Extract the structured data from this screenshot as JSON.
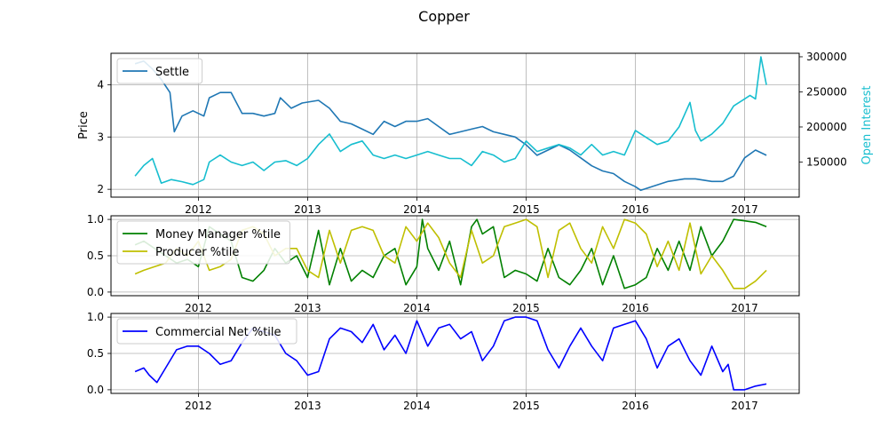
{
  "chart_data": {
    "type": "line",
    "title": "Copper",
    "colors": {
      "settle": "#1f77b4",
      "open_interest": "#17becf",
      "money_manager": "#008000",
      "producer": "#bfbf00",
      "commercial": "#0000ff",
      "grid": "#b0b0b0"
    },
    "x_ticks": [
      "2012",
      "2013",
      "2014",
      "2015",
      "2016",
      "2017"
    ],
    "panels": [
      {
        "id": "price",
        "ylabel": "Price",
        "ylabel_right": "Open Interest",
        "ylim": [
          1.85,
          4.6
        ],
        "ylim_right": [
          100000,
          305000
        ],
        "y_ticks": [
          "2",
          "3",
          "4"
        ],
        "y_ticks_right": [
          "150000",
          "200000",
          "250000",
          "300000"
        ],
        "legend": "top-left",
        "series": [
          {
            "name": "Settle",
            "axis": "left",
            "x": [
              2011.42,
              2011.5,
              2011.58,
              2011.66,
              2011.74,
              2011.78,
              2011.85,
              2011.95,
              2012.05,
              2012.1,
              2012.2,
              2012.3,
              2012.4,
              2012.5,
              2012.6,
              2012.7,
              2012.75,
              2012.85,
              2012.95,
              2013.1,
              2013.2,
              2013.3,
              2013.4,
              2013.5,
              2013.6,
              2013.7,
              2013.8,
              2013.9,
              2014.0,
              2014.1,
              2014.2,
              2014.3,
              2014.4,
              2014.5,
              2014.6,
              2014.7,
              2014.8,
              2014.9,
              2015.0,
              2015.1,
              2015.2,
              2015.3,
              2015.4,
              2015.5,
              2015.6,
              2015.7,
              2015.8,
              2015.9,
              2016.0,
              2016.05,
              2016.15,
              2016.3,
              2016.45,
              2016.55,
              2016.7,
              2016.8,
              2016.9,
              2017.0,
              2017.1,
              2017.2
            ],
            "y": [
              4.4,
              4.45,
              4.3,
              4.1,
              3.85,
              3.1,
              3.4,
              3.5,
              3.4,
              3.75,
              3.85,
              3.85,
              3.45,
              3.45,
              3.4,
              3.45,
              3.75,
              3.55,
              3.65,
              3.7,
              3.55,
              3.3,
              3.25,
              3.15,
              3.05,
              3.3,
              3.2,
              3.3,
              3.3,
              3.35,
              3.2,
              3.05,
              3.1,
              3.15,
              3.2,
              3.1,
              3.05,
              3.0,
              2.85,
              2.65,
              2.75,
              2.85,
              2.75,
              2.6,
              2.45,
              2.35,
              2.3,
              2.15,
              2.05,
              1.98,
              2.05,
              2.15,
              2.2,
              2.2,
              2.15,
              2.15,
              2.25,
              2.6,
              2.75,
              2.65
            ]
          },
          {
            "name": "Open Interest",
            "axis": "right",
            "x": [
              2011.42,
              2011.5,
              2011.58,
              2011.66,
              2011.75,
              2011.85,
              2011.95,
              2012.05,
              2012.1,
              2012.2,
              2012.3,
              2012.4,
              2012.5,
              2012.6,
              2012.7,
              2012.8,
              2012.9,
              2013.0,
              2013.1,
              2013.2,
              2013.3,
              2013.4,
              2013.5,
              2013.6,
              2013.7,
              2013.8,
              2013.9,
              2014.0,
              2014.1,
              2014.2,
              2014.3,
              2014.4,
              2014.5,
              2014.6,
              2014.7,
              2014.8,
              2014.9,
              2015.0,
              2015.1,
              2015.2,
              2015.3,
              2015.4,
              2015.5,
              2015.6,
              2015.7,
              2015.8,
              2015.9,
              2016.0,
              2016.1,
              2016.2,
              2016.3,
              2016.4,
              2016.5,
              2016.55,
              2016.6,
              2016.7,
              2016.8,
              2016.9,
              2017.0,
              2017.05,
              2017.1,
              2017.15,
              2017.2
            ],
            "y": [
              130000,
              145000,
              155000,
              120000,
              125000,
              122000,
              118000,
              125000,
              150000,
              160000,
              150000,
              145000,
              150000,
              138000,
              150000,
              152000,
              145000,
              155000,
              175000,
              190000,
              165000,
              175000,
              180000,
              160000,
              155000,
              160000,
              155000,
              160000,
              165000,
              160000,
              155000,
              155000,
              145000,
              165000,
              160000,
              150000,
              155000,
              180000,
              165000,
              170000,
              175000,
              170000,
              160000,
              175000,
              160000,
              165000,
              160000,
              195000,
              185000,
              175000,
              180000,
              200000,
              235000,
              195000,
              180000,
              190000,
              205000,
              230000,
              240000,
              245000,
              240000,
              300000,
              260000
            ]
          }
        ]
      },
      {
        "id": "percentile",
        "ylim": [
          -0.05,
          1.05
        ],
        "y_ticks": [
          "0.0",
          "0.5",
          "1.0"
        ],
        "legend": "top-left",
        "series": [
          {
            "name": "Money Manager %tile",
            "x": [
              2011.42,
              2011.5,
              2011.6,
              2011.7,
              2011.8,
              2011.9,
              2012.0,
              2012.1,
              2012.2,
              2012.3,
              2012.4,
              2012.5,
              2012.6,
              2012.7,
              2012.8,
              2012.9,
              2013.0,
              2013.1,
              2013.2,
              2013.3,
              2013.4,
              2013.5,
              2013.6,
              2013.7,
              2013.8,
              2013.9,
              2014.0,
              2014.05,
              2014.1,
              2014.2,
              2014.3,
              2014.4,
              2014.5,
              2014.55,
              2014.6,
              2014.7,
              2014.8,
              2014.9,
              2015.0,
              2015.1,
              2015.2,
              2015.3,
              2015.4,
              2015.5,
              2015.6,
              2015.7,
              2015.8,
              2015.9,
              2016.0,
              2016.1,
              2016.2,
              2016.3,
              2016.4,
              2016.5,
              2016.6,
              2016.7,
              2016.8,
              2016.9,
              2017.0,
              2017.1,
              2017.2
            ],
            "y": [
              0.65,
              0.7,
              0.6,
              0.5,
              0.4,
              0.45,
              0.35,
              0.9,
              0.8,
              0.7,
              0.2,
              0.15,
              0.3,
              0.6,
              0.4,
              0.5,
              0.2,
              0.85,
              0.1,
              0.6,
              0.15,
              0.3,
              0.2,
              0.5,
              0.6,
              0.1,
              0.35,
              1.0,
              0.6,
              0.3,
              0.7,
              0.1,
              0.9,
              1.0,
              0.8,
              0.9,
              0.2,
              0.3,
              0.25,
              0.15,
              0.6,
              0.2,
              0.1,
              0.3,
              0.6,
              0.1,
              0.5,
              0.05,
              0.1,
              0.2,
              0.6,
              0.3,
              0.7,
              0.3,
              0.9,
              0.5,
              0.7,
              1.0,
              0.98,
              0.96,
              0.9
            ]
          },
          {
            "name": "Producer %tile",
            "x": [
              2011.42,
              2011.5,
              2011.6,
              2011.7,
              2011.8,
              2011.9,
              2012.0,
              2012.1,
              2012.2,
              2012.3,
              2012.4,
              2012.5,
              2012.6,
              2012.7,
              2012.8,
              2012.9,
              2013.0,
              2013.1,
              2013.2,
              2013.3,
              2013.4,
              2013.5,
              2013.6,
              2013.7,
              2013.8,
              2013.9,
              2014.0,
              2014.1,
              2014.2,
              2014.3,
              2014.4,
              2014.5,
              2014.6,
              2014.7,
              2014.8,
              2014.9,
              2015.0,
              2015.1,
              2015.2,
              2015.3,
              2015.4,
              2015.5,
              2015.6,
              2015.7,
              2015.8,
              2015.9,
              2016.0,
              2016.1,
              2016.2,
              2016.3,
              2016.4,
              2016.5,
              2016.6,
              2016.7,
              2016.8,
              2016.9,
              2017.0,
              2017.1,
              2017.2
            ],
            "y": [
              0.25,
              0.3,
              0.35,
              0.4,
              0.6,
              0.5,
              0.7,
              0.3,
              0.35,
              0.45,
              0.85,
              0.9,
              0.8,
              0.5,
              0.6,
              0.6,
              0.3,
              0.2,
              0.85,
              0.4,
              0.85,
              0.9,
              0.85,
              0.5,
              0.4,
              0.9,
              0.7,
              0.95,
              0.75,
              0.4,
              0.2,
              0.85,
              0.4,
              0.5,
              0.9,
              0.95,
              1.0,
              0.9,
              0.2,
              0.85,
              0.95,
              0.6,
              0.4,
              0.9,
              0.6,
              1.0,
              0.95,
              0.8,
              0.35,
              0.7,
              0.3,
              0.95,
              0.25,
              0.5,
              0.3,
              0.05,
              0.05,
              0.15,
              0.3
            ]
          }
        ]
      },
      {
        "id": "commercial",
        "ylim": [
          -0.05,
          1.05
        ],
        "y_ticks": [
          "0.0",
          "0.5",
          "1.0"
        ],
        "legend": "top-left",
        "series": [
          {
            "name": "Commercial Net %tile",
            "x": [
              2011.42,
              2011.5,
              2011.55,
              2011.62,
              2011.7,
              2011.8,
              2011.9,
              2012.0,
              2012.1,
              2012.2,
              2012.3,
              2012.4,
              2012.5,
              2012.6,
              2012.7,
              2012.8,
              2012.9,
              2013.0,
              2013.1,
              2013.2,
              2013.3,
              2013.4,
              2013.5,
              2013.6,
              2013.7,
              2013.8,
              2013.9,
              2014.0,
              2014.1,
              2014.2,
              2014.3,
              2014.4,
              2014.5,
              2014.6,
              2014.7,
              2014.8,
              2014.9,
              2015.0,
              2015.1,
              2015.2,
              2015.3,
              2015.4,
              2015.5,
              2015.6,
              2015.7,
              2015.8,
              2015.9,
              2016.0,
              2016.1,
              2016.2,
              2016.3,
              2016.4,
              2016.5,
              2016.6,
              2016.7,
              2016.8,
              2016.85,
              2016.9,
              2017.0,
              2017.1,
              2017.2
            ],
            "y": [
              0.25,
              0.3,
              0.2,
              0.1,
              0.3,
              0.55,
              0.6,
              0.6,
              0.5,
              0.35,
              0.4,
              0.65,
              0.85,
              0.8,
              0.75,
              0.5,
              0.4,
              0.2,
              0.25,
              0.7,
              0.85,
              0.8,
              0.65,
              0.9,
              0.55,
              0.75,
              0.5,
              0.95,
              0.6,
              0.85,
              0.9,
              0.7,
              0.8,
              0.4,
              0.6,
              0.95,
              1.0,
              1.0,
              0.95,
              0.55,
              0.3,
              0.6,
              0.85,
              0.6,
              0.4,
              0.85,
              0.9,
              0.95,
              0.7,
              0.3,
              0.6,
              0.7,
              0.4,
              0.2,
              0.6,
              0.25,
              0.35,
              0.0,
              0.0,
              0.05,
              0.08
            ]
          }
        ]
      }
    ]
  }
}
